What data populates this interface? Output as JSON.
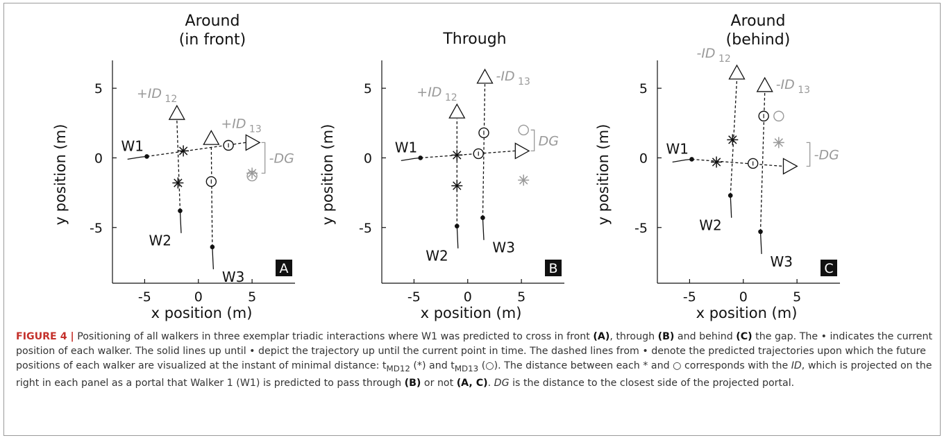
{
  "figure": {
    "panels": [
      {
        "letter": "A",
        "title_line1": "Around",
        "title_line2": "(in front)",
        "id12_label": "+ID",
        "id12_sub": "12",
        "id13_label": "+ID",
        "id13_sub": "13",
        "dg_label": "-DG",
        "walker_labels": [
          "W1",
          "W2",
          "W3"
        ]
      },
      {
        "letter": "B",
        "title_line1": "Through",
        "title_line2": "",
        "id12_label": "+ID",
        "id12_sub": "12",
        "id13_label": "-ID",
        "id13_sub": "13",
        "dg_label": "DG",
        "walker_labels": [
          "W1",
          "W2",
          "W3"
        ]
      },
      {
        "letter": "C",
        "title_line1": "Around",
        "title_line2": "(behind)",
        "id12_label": "-ID",
        "id12_sub": "12",
        "id13_label": "-ID",
        "id13_sub": "13",
        "dg_label": "-DG",
        "walker_labels": [
          "W1",
          "W2",
          "W3"
        ]
      }
    ],
    "xlabel": "x position (m)",
    "ylabel": "y position (m)",
    "xticks": [
      "-5",
      "0",
      "5"
    ],
    "yticks": [
      "5",
      "0",
      "-5"
    ]
  },
  "chart_data": [
    {
      "type": "scatter",
      "title": "Around (in front)",
      "xlabel": "x position (m)",
      "ylabel": "y position (m)",
      "xlim": [
        -8,
        9
      ],
      "ylim": [
        -9,
        7
      ],
      "walkers": [
        {
          "name": "W1",
          "current": [
            -4.8,
            0.1
          ],
          "marker_w2": [
            -1.4,
            0.5
          ],
          "marker_w3": [
            2.8,
            0.9
          ],
          "end": [
            5.0,
            1.1
          ]
        },
        {
          "name": "W2",
          "current": [
            -1.7,
            -3.8
          ],
          "marker_w1": [
            -1.9,
            -1.8
          ],
          "end": [
            -2.0,
            3.2
          ]
        },
        {
          "name": "W3",
          "current": [
            1.3,
            -6.4
          ],
          "marker_w1": [
            1.2,
            -1.7
          ],
          "end": [
            1.2,
            1.4
          ]
        }
      ],
      "projected": {
        "star": [
          5.0,
          -1.1
        ],
        "circle": [
          5.0,
          -1.3
        ]
      }
    },
    {
      "type": "scatter",
      "title": "Through",
      "xlabel": "x position (m)",
      "ylabel": "y position (m)",
      "xlim": [
        -8,
        9
      ],
      "ylim": [
        -9,
        7
      ],
      "walkers": [
        {
          "name": "W1",
          "current": [
            -4.4,
            0.0
          ],
          "marker_w2": [
            -1.0,
            0.2
          ],
          "marker_w3": [
            1.0,
            0.3
          ],
          "end": [
            5.0,
            0.5
          ]
        },
        {
          "name": "W2",
          "current": [
            -1.0,
            -4.9
          ],
          "marker_w1": [
            -1.0,
            -2.0
          ],
          "end": [
            -1.0,
            3.3
          ]
        },
        {
          "name": "W3",
          "current": [
            1.4,
            -4.3
          ],
          "marker_w1": [
            1.5,
            1.8
          ],
          "end": [
            1.6,
            5.8
          ]
        }
      ],
      "projected": {
        "star": [
          5.2,
          -1.6
        ],
        "circle": [
          5.2,
          2.0
        ]
      }
    },
    {
      "type": "scatter",
      "title": "Around (behind)",
      "xlabel": "x position (m)",
      "ylabel": "y position (m)",
      "xlim": [
        -8,
        9
      ],
      "ylim": [
        -9,
        7
      ],
      "walkers": [
        {
          "name": "W1",
          "current": [
            -4.8,
            -0.1
          ],
          "marker_w2": [
            -2.5,
            -0.3
          ],
          "marker_w3": [
            0.9,
            -0.4
          ],
          "end": [
            4.3,
            -0.6
          ]
        },
        {
          "name": "W2",
          "current": [
            -1.2,
            -2.7
          ],
          "marker_w1": [
            -1.0,
            1.3
          ],
          "end": [
            -0.6,
            6.1
          ]
        },
        {
          "name": "W3",
          "current": [
            1.6,
            -5.3
          ],
          "marker_w1": [
            1.9,
            3.0
          ],
          "end": [
            2.0,
            5.2
          ]
        }
      ],
      "projected": {
        "star": [
          3.3,
          1.1
        ],
        "circle": [
          3.3,
          3.0
        ]
      }
    }
  ],
  "caption": {
    "head": "FIGURE 4 |",
    "t1": " Positioning of all walkers in three exemplar triadic interactions where W1 was predicted to cross in front ",
    "b1": "(A)",
    "t2": ", through ",
    "b2": "(B)",
    "t3": " and behind ",
    "b3": "(C)",
    "t4": " the gap. The • indicates the current position of each walker. The solid lines up until • depict the trajectory up until the current point in time. The dashed lines from • denote the predicted trajectories upon which the future positions of each walker are visualized at the instant of minimal distance: t",
    "s1": "MD12",
    "t5": " (*) and t",
    "s2": "MD13",
    "t6": " (○). The distance between each * and ○ corresponds with the ",
    "i1": "ID",
    "t7": ", which is projected on the right in each panel as a portal that Walker 1 (W1) is predicted to pass through ",
    "b4": "(B)",
    "t8": " or not ",
    "b5": "(A, C)",
    "t9": ". ",
    "i2": "DG",
    "t10": " is the distance to the closest side of the projected portal."
  }
}
